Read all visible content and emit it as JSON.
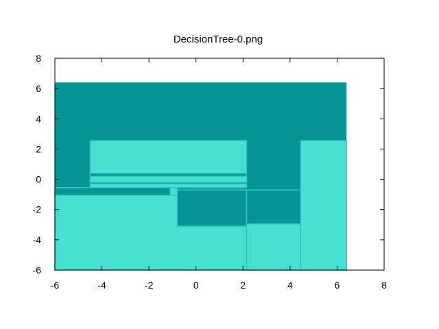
{
  "chart_data": {
    "type": "heatmap",
    "title": "DecisionTree-0.png",
    "xlabel": "",
    "ylabel": "",
    "xlim": [
      -6,
      8
    ],
    "ylim": [
      -6,
      8
    ],
    "xticks": [
      -6,
      -4,
      -2,
      0,
      2,
      4,
      6,
      8
    ],
    "yticks": [
      -6,
      -4,
      -2,
      0,
      2,
      4,
      6,
      8
    ],
    "grid": false,
    "legend": "none",
    "colors": {
      "class_dark": "#069494",
      "class_light": "#45e0d0",
      "boundary": "#33c6c0"
    },
    "regions": [
      {
        "class": "dark",
        "x": [
          -6.0,
          6.4
        ],
        "y": [
          -6.0,
          6.4
        ]
      },
      {
        "class": "light",
        "x": [
          -6.0,
          6.4
        ],
        "y": [
          -6.0,
          -1.05
        ]
      },
      {
        "class": "light",
        "x": [
          4.45,
          6.4
        ],
        "y": [
          -6.0,
          2.55
        ]
      },
      {
        "class": "light",
        "x": [
          2.15,
          4.45
        ],
        "y": [
          -6.0,
          -2.95
        ]
      },
      {
        "class": "light",
        "x": [
          -4.5,
          2.15
        ],
        "y": [
          -0.55,
          2.55
        ]
      },
      {
        "class": "dark",
        "x": [
          -4.5,
          2.15
        ],
        "y": [
          0.2,
          0.4
        ]
      },
      {
        "class": "dark",
        "x": [
          -4.5,
          2.15
        ],
        "y": [
          -0.3,
          -0.2
        ]
      },
      {
        "class": "dark",
        "x": [
          -6.0,
          -1.1
        ],
        "y": [
          -1.05,
          -0.55
        ]
      },
      {
        "class": "light",
        "x": [
          -1.1,
          -0.8
        ],
        "y": [
          -1.05,
          -0.55
        ]
      },
      {
        "class": "dark",
        "x": [
          -0.8,
          2.15
        ],
        "y": [
          -3.1,
          -0.7
        ]
      },
      {
        "class": "dark",
        "x": [
          2.15,
          4.45
        ],
        "y": [
          -2.95,
          -0.7
        ]
      }
    ]
  }
}
